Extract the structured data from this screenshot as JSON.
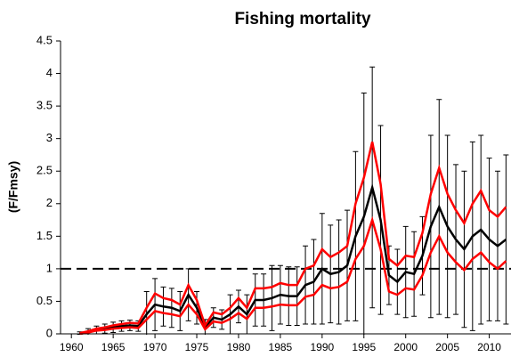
{
  "chart_data": {
    "type": "line",
    "title": "Fishing mortality",
    "y_label": "(F/Fmsy)",
    "x": [
      1961,
      1962,
      1963,
      1964,
      1965,
      1966,
      1967,
      1968,
      1969,
      1970,
      1971,
      1972,
      1973,
      1974,
      1975,
      1976,
      1977,
      1978,
      1979,
      1980,
      1981,
      1982,
      1983,
      1984,
      1985,
      1986,
      1987,
      1988,
      1989,
      1990,
      1991,
      1992,
      1993,
      1994,
      1995,
      1996,
      1997,
      1998,
      1999,
      2000,
      2001,
      2002,
      2003,
      2004,
      2005,
      2006,
      2007,
      2008,
      2009,
      2010,
      2011,
      2012
    ],
    "series": [
      {
        "color": "#000000",
        "values": [
          0.01,
          0.03,
          0.06,
          0.08,
          0.1,
          0.12,
          0.13,
          0.12,
          0.3,
          0.45,
          0.42,
          0.4,
          0.35,
          0.6,
          0.4,
          0.1,
          0.25,
          0.22,
          0.3,
          0.42,
          0.3,
          0.52,
          0.52,
          0.55,
          0.6,
          0.58,
          0.58,
          0.75,
          0.8,
          1.0,
          0.92,
          0.95,
          1.05,
          1.5,
          1.8,
          2.25,
          1.75,
          0.9,
          0.8,
          0.95,
          0.92,
          1.2,
          1.65,
          1.95,
          1.65,
          1.45,
          1.3,
          1.5,
          1.6,
          1.45,
          1.35,
          1.45
        ],
        "errors": [
          0.02,
          0.05,
          0.06,
          0.07,
          0.08,
          0.08,
          0.08,
          0.08,
          0.35,
          0.4,
          0.3,
          0.3,
          0.3,
          0.4,
          0.25,
          0.12,
          0.15,
          0.15,
          0.3,
          0.25,
          0.3,
          0.4,
          0.4,
          0.5,
          0.45,
          0.45,
          0.45,
          0.6,
          0.65,
          0.85,
          0.75,
          0.8,
          0.85,
          1.3,
          1.9,
          1.85,
          1.45,
          0.45,
          0.5,
          0.7,
          0.65,
          0.6,
          1.4,
          1.65,
          1.4,
          1.15,
          1.2,
          1.45,
          1.45,
          1.25,
          1.15,
          1.3
        ]
      },
      {
        "color": "#ff0000",
        "values": [
          0.01,
          0.04,
          0.08,
          0.1,
          0.13,
          0.15,
          0.17,
          0.16,
          0.4,
          0.62,
          0.55,
          0.52,
          0.45,
          0.75,
          0.52,
          0.13,
          0.33,
          0.3,
          0.4,
          0.55,
          0.4,
          0.7,
          0.7,
          0.72,
          0.78,
          0.75,
          0.75,
          1.0,
          1.05,
          1.3,
          1.18,
          1.25,
          1.35,
          2.0,
          2.4,
          2.95,
          2.3,
          1.15,
          1.05,
          1.2,
          1.18,
          1.55,
          2.15,
          2.55,
          2.15,
          1.9,
          1.7,
          2.0,
          2.2,
          1.9,
          1.8,
          1.95
        ]
      },
      {
        "color": "#ff0000",
        "values": [
          0,
          0.02,
          0.05,
          0.06,
          0.08,
          0.09,
          0.1,
          0.09,
          0.22,
          0.35,
          0.32,
          0.3,
          0.27,
          0.45,
          0.3,
          0.07,
          0.19,
          0.17,
          0.23,
          0.32,
          0.23,
          0.4,
          0.4,
          0.42,
          0.45,
          0.44,
          0.44,
          0.57,
          0.6,
          0.75,
          0.7,
          0.72,
          0.8,
          1.15,
          1.35,
          1.75,
          1.3,
          0.65,
          0.6,
          0.7,
          0.68,
          0.9,
          1.25,
          1.5,
          1.25,
          1.1,
          0.98,
          1.15,
          1.25,
          1.1,
          1.0,
          1.12
        ]
      }
    ],
    "reference_line": 1,
    "xlim": [
      1958.7,
      2012.6
    ],
    "xticks": [
      1960,
      1965,
      1970,
      1975,
      1980,
      1985,
      1990,
      1995,
      2000,
      2005,
      2010
    ],
    "ylim": [
      0,
      4.5
    ],
    "yticks": [
      0,
      0.5,
      1,
      1.5,
      2,
      2.5,
      3,
      3.5,
      4,
      4.5
    ]
  }
}
